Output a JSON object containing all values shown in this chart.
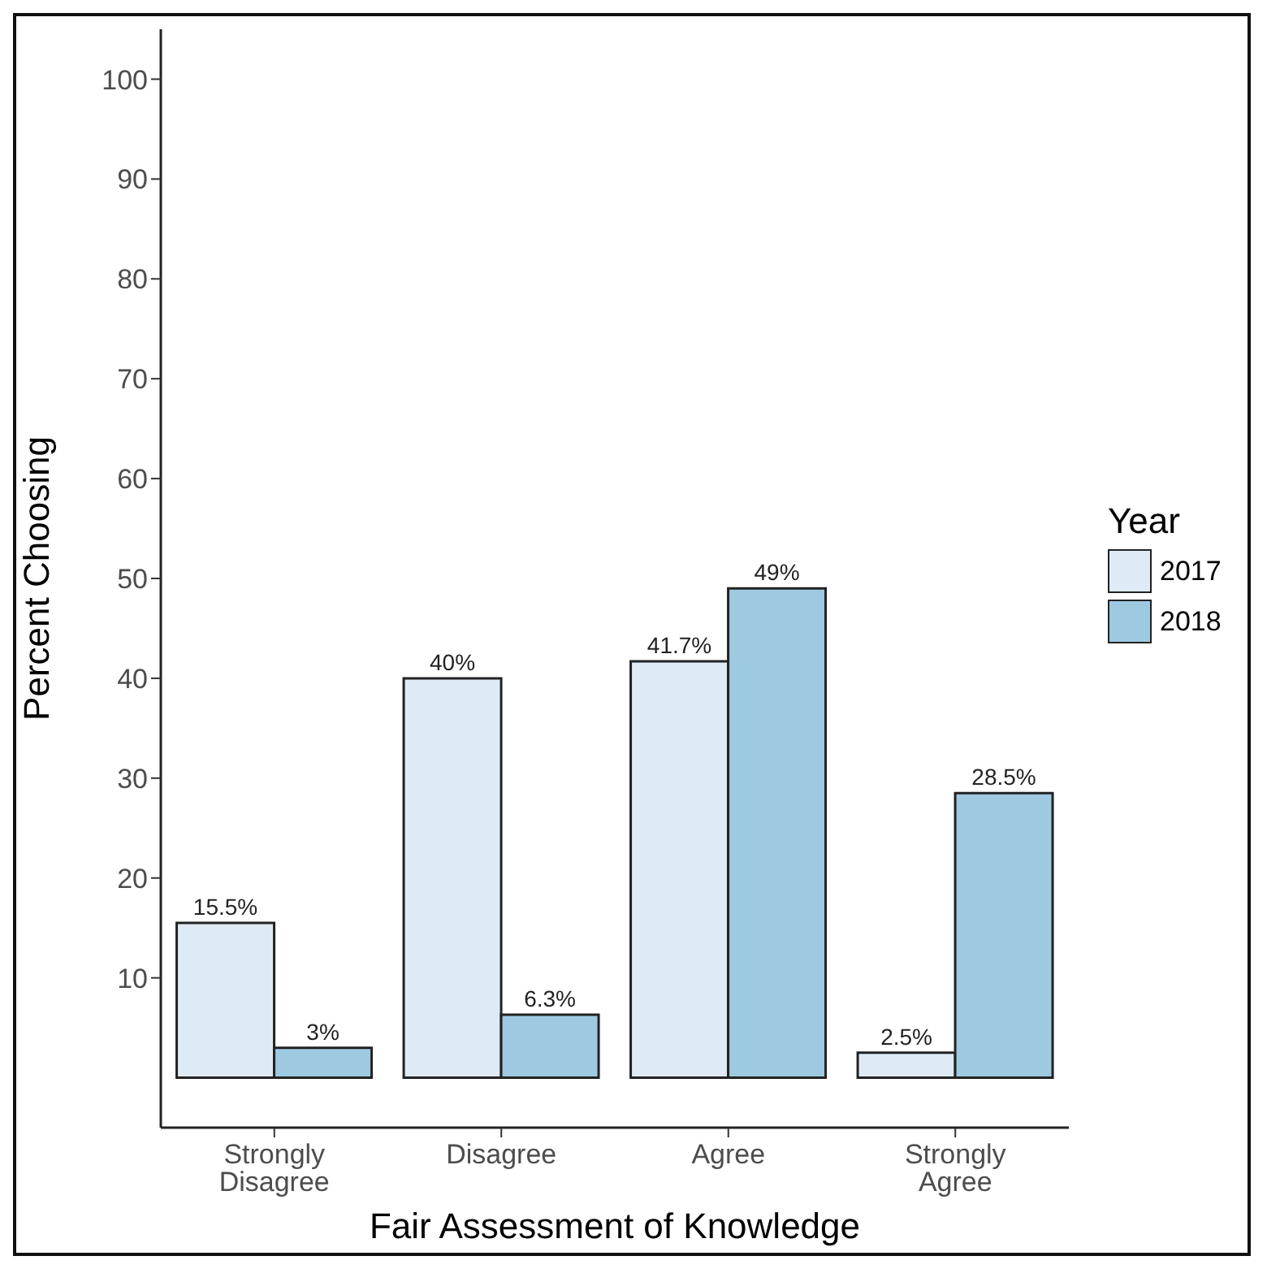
{
  "chart_data": {
    "type": "bar",
    "xlabel": "Fair Assessment of Knowledge",
    "ylabel": "Percent Choosing",
    "legend_title": "Year",
    "legend": "right",
    "categories": [
      "Strongly Disagree",
      "Disagree",
      "Agree",
      "Strongly Agree"
    ],
    "series": [
      {
        "name": "2017",
        "color": "#deebf7",
        "values": [
          15.5,
          40,
          41.7,
          2.5
        ],
        "value_labels": [
          "15.5%",
          "40%",
          "41.7%",
          "2.5%"
        ]
      },
      {
        "name": "2018",
        "color": "#9ecae1",
        "values": [
          3,
          6.3,
          49,
          28.5
        ],
        "value_labels": [
          "3%",
          "6.3%",
          "49%",
          "28.5%"
        ]
      }
    ],
    "ylim": [
      -5,
      105
    ],
    "yticks": [
      10,
      20,
      30,
      40,
      50,
      60,
      70,
      80,
      90,
      100
    ],
    "grid": false
  }
}
